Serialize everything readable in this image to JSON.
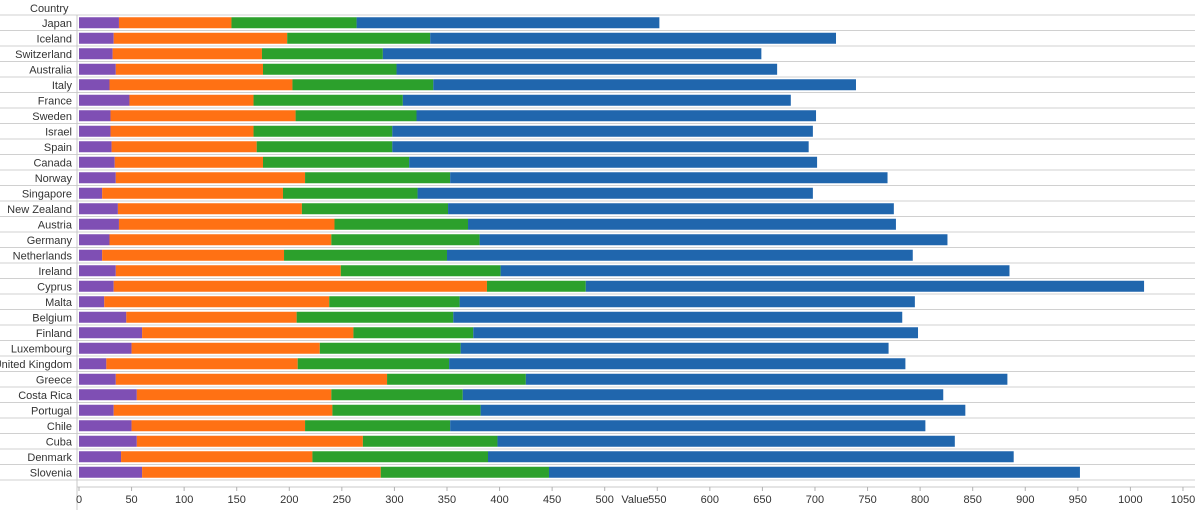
{
  "chart_data": {
    "type": "bar",
    "orientation": "horizontal",
    "stacked": true,
    "row_header": "Country",
    "xlabel": "Value",
    "xlim": [
      0,
      1050
    ],
    "xticks": [
      0,
      50,
      100,
      150,
      200,
      250,
      300,
      350,
      400,
      450,
      500,
      550,
      600,
      650,
      700,
      750,
      800,
      850,
      900,
      950,
      1000,
      1050
    ],
    "grid": "horizontal row dividers",
    "legend": "none",
    "categories": [
      "Japan",
      "Iceland",
      "Switzerland",
      "Australia",
      "Italy",
      "France",
      "Sweden",
      "Israel",
      "Spain",
      "Canada",
      "Norway",
      "Singapore",
      "New Zealand",
      "Austria",
      "Germany",
      "Netherlands",
      "Ireland",
      "Cyprus",
      "Malta",
      "Belgium",
      "Finland",
      "Luxembourg",
      "United Kingdom",
      "Greece",
      "Costa Rica",
      "Portugal",
      "Chile",
      "Cuba",
      "Denmark",
      "Slovenia"
    ],
    "series": [
      {
        "color": "#7f4fb4",
        "values": [
          38,
          33,
          32,
          35,
          29,
          48,
          30,
          30,
          31,
          34,
          35,
          22,
          37,
          38,
          29,
          22,
          35,
          33,
          24,
          45,
          60,
          50,
          26,
          35,
          55,
          33,
          50,
          55,
          40,
          60
        ]
      },
      {
        "color": "#ff7114",
        "values": [
          107,
          165,
          142,
          140,
          174,
          118,
          176,
          136,
          138,
          141,
          180,
          172,
          175,
          205,
          211,
          173,
          214,
          355,
          214,
          162,
          201,
          179,
          182,
          258,
          185,
          208,
          165,
          215,
          182,
          227
        ]
      },
      {
        "color": "#2ca02c",
        "values": [
          119,
          136,
          115,
          127,
          134,
          142,
          115,
          132,
          129,
          139,
          138,
          128,
          139,
          127,
          141,
          155,
          152,
          94,
          124,
          149,
          114,
          134,
          144,
          132,
          125,
          141,
          138,
          128,
          167,
          160
        ]
      },
      {
        "color": "#2066ad",
        "values": [
          288,
          386,
          360,
          362,
          402,
          369,
          380,
          400,
          396,
          388,
          416,
          376,
          424,
          407,
          445,
          443,
          484,
          531,
          433,
          427,
          423,
          407,
          434,
          458,
          457,
          461,
          452,
          435,
          500,
          505
        ]
      }
    ]
  }
}
